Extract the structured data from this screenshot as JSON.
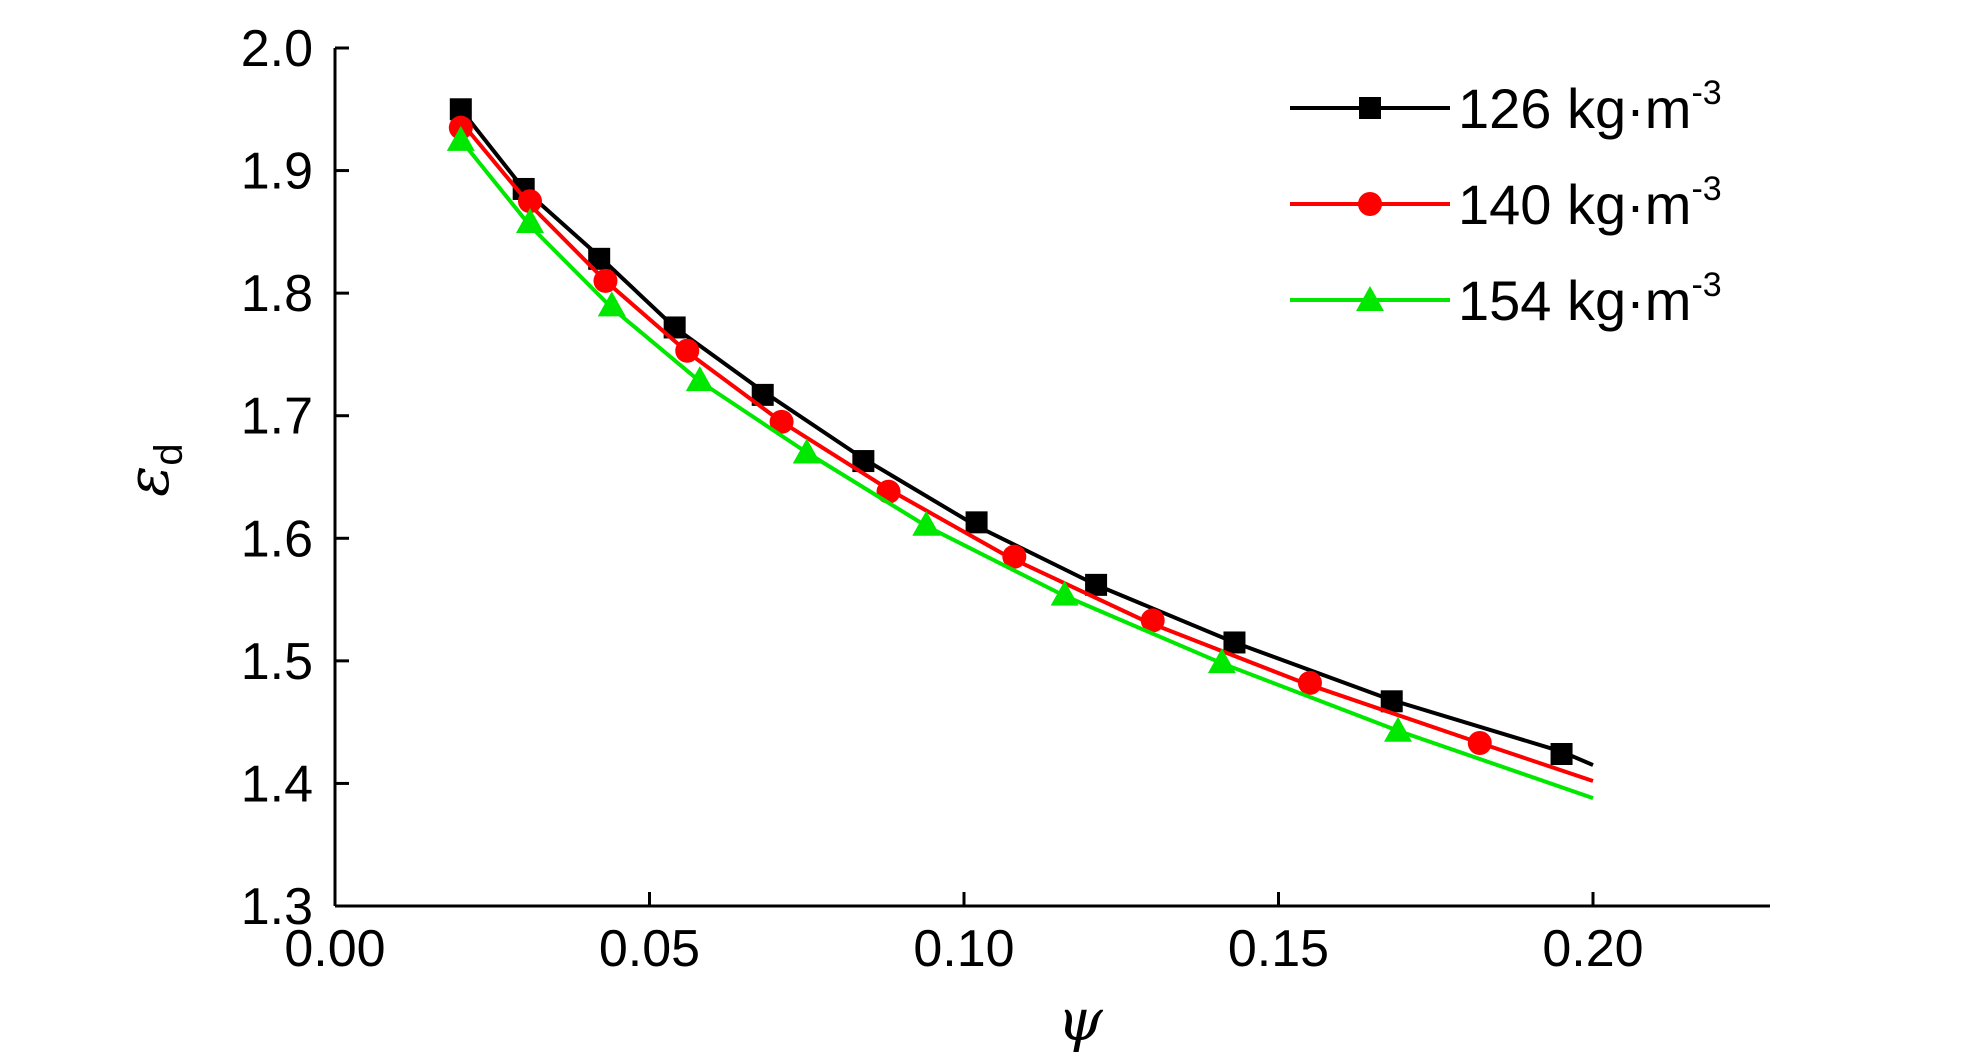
{
  "chart_data": {
    "type": "line",
    "title": "",
    "xlabel": "ψ",
    "ylabel": "ε",
    "ylabel_subscript": "d",
    "xlim": [
      0,
      0.225
    ],
    "ylim": [
      1.3,
      2.0
    ],
    "x_ticks": [
      0.0,
      0.05,
      0.1,
      0.15,
      0.2
    ],
    "x_tick_labels": [
      "0.00",
      "0.05",
      "0.10",
      "0.15",
      "0.20"
    ],
    "y_ticks": [
      1.3,
      1.4,
      1.5,
      1.6,
      1.7,
      1.8,
      1.9,
      2.0
    ],
    "y_tick_labels": [
      "1.3",
      "1.4",
      "1.5",
      "1.6",
      "1.7",
      "1.8",
      "1.9",
      "2.0"
    ],
    "grid": false,
    "legend_position": "top-right",
    "series": [
      {
        "name": "126 kg·m",
        "name_sup": "-3",
        "color": "#000000",
        "marker": "square",
        "line": {
          "x": [
            0.02,
            0.03,
            0.042,
            0.054,
            0.068,
            0.084,
            0.102,
            0.121,
            0.143,
            0.168,
            0.195,
            0.2
          ],
          "y": [
            1.95,
            1.885,
            1.83,
            1.772,
            1.72,
            1.665,
            1.61,
            1.562,
            1.515,
            1.468,
            1.426,
            1.415
          ]
        },
        "markers": {
          "x": [
            0.02,
            0.03,
            0.042,
            0.054,
            0.068,
            0.084,
            0.102,
            0.121,
            0.143,
            0.168,
            0.195
          ],
          "y": [
            1.95,
            1.885,
            1.828,
            1.772,
            1.717,
            1.663,
            1.613,
            1.562,
            1.515,
            1.467,
            1.424
          ]
        }
      },
      {
        "name": "140 kg·m",
        "name_sup": "-3",
        "color": "#ff0000",
        "marker": "circle",
        "line": {
          "x": [
            0.02,
            0.031,
            0.043,
            0.056,
            0.071,
            0.088,
            0.107,
            0.129,
            0.154,
            0.182,
            0.2
          ],
          "y": [
            1.94,
            1.872,
            1.81,
            1.752,
            1.695,
            1.64,
            1.585,
            1.532,
            1.482,
            1.433,
            1.402
          ]
        },
        "markers": {
          "x": [
            0.02,
            0.031,
            0.043,
            0.056,
            0.071,
            0.088,
            0.108,
            0.13,
            0.155,
            0.182
          ],
          "y": [
            1.935,
            1.875,
            1.81,
            1.753,
            1.695,
            1.638,
            1.585,
            1.533,
            1.482,
            1.433
          ]
        }
      },
      {
        "name": "154 kg·m",
        "name_sup": "-3",
        "color": "#00e800",
        "marker": "triangle",
        "line": {
          "x": [
            0.02,
            0.031,
            0.044,
            0.058,
            0.075,
            0.094,
            0.116,
            0.141,
            0.169,
            0.2
          ],
          "y": [
            1.925,
            1.855,
            1.788,
            1.728,
            1.67,
            1.61,
            1.553,
            1.498,
            1.443,
            1.388
          ]
        },
        "markers": {
          "x": [
            0.02,
            0.031,
            0.044,
            0.058,
            0.075,
            0.094,
            0.116,
            0.141,
            0.169
          ],
          "y": [
            1.925,
            1.858,
            1.79,
            1.729,
            1.67,
            1.611,
            1.554,
            1.499,
            1.443
          ]
        }
      }
    ]
  }
}
